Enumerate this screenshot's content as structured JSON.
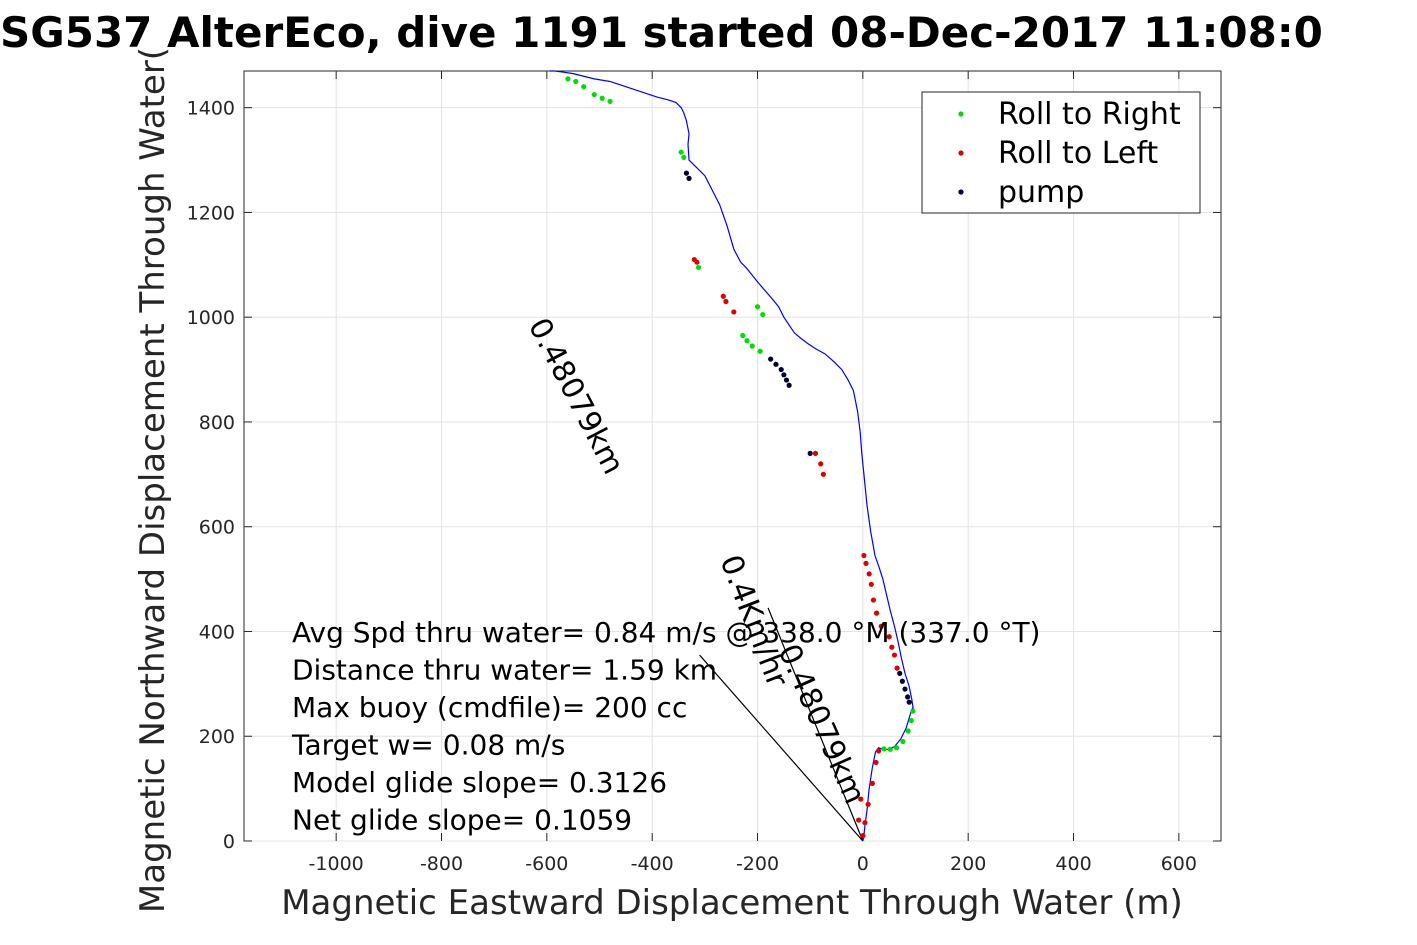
{
  "chart_data": {
    "type": "line",
    "title": "SG537 AlterEco, dive 1191 started 08-Dec-2017 11:08:0",
    "xlabel": "Magnetic Eastward Displacement Through Water (m)",
    "ylabel": "Magnetic Northward Displacement Through Water(",
    "xlim": [
      -1175,
      680
    ],
    "ylim": [
      0,
      1470
    ],
    "xticks": [
      "-1000",
      "-800",
      "-600",
      "-400",
      "-200",
      "0",
      "200",
      "400",
      "600"
    ],
    "yticks": [
      "0",
      "200",
      "400",
      "600",
      "800",
      "1000",
      "1200",
      "1400"
    ],
    "grid": true,
    "legend_position": "top-right",
    "track": {
      "x": [
        0,
        2,
        4,
        8,
        12,
        18,
        24,
        30,
        38,
        48,
        60,
        72,
        82,
        88,
        92,
        95,
        96,
        93,
        88,
        80,
        73,
        67,
        60,
        52,
        45,
        38,
        30,
        23,
        15,
        8,
        2,
        -2,
        -5,
        -10,
        -18,
        -28,
        -40,
        -55,
        -72,
        -90,
        -105,
        -118,
        -130,
        -140,
        -150,
        -160,
        -172,
        -185,
        -198,
        -210,
        -222,
        -232,
        -245,
        -258,
        -272,
        -300,
        -330,
        -332,
        -330,
        -335,
        -340,
        -345,
        -355,
        -370,
        -390,
        -420,
        -450,
        -480,
        -510,
        -530,
        -550,
        -570,
        -585,
        -595
      ],
      "y": [
        0,
        10,
        30,
        60,
        100,
        140,
        170,
        178,
        175,
        175,
        180,
        195,
        215,
        235,
        248,
        255,
        250,
        270,
        295,
        320,
        350,
        380,
        410,
        440,
        470,
        500,
        525,
        545,
        590,
        640,
        700,
        740,
        780,
        820,
        860,
        880,
        900,
        915,
        930,
        940,
        950,
        960,
        970,
        985,
        1000,
        1020,
        1035,
        1050,
        1065,
        1080,
        1095,
        1105,
        1130,
        1175,
        1215,
        1270,
        1300,
        1330,
        1350,
        1375,
        1390,
        1400,
        1410,
        1415,
        1420,
        1430,
        1440,
        1450,
        1455,
        1460,
        1465,
        1468,
        1470,
        1470
      ]
    },
    "series": [
      {
        "name": "Roll to Right",
        "color": "#00dd00",
        "x": [
          40,
          52,
          64,
          76,
          86,
          92,
          95,
          -228,
          -220,
          -210,
          -195,
          -560,
          -545,
          -530,
          -510,
          -495,
          -480,
          -345,
          -340,
          -312,
          -200,
          -190
        ],
        "y": [
          176,
          175,
          178,
          190,
          210,
          230,
          248,
          965,
          955,
          945,
          935,
          1455,
          1450,
          1440,
          1425,
          1418,
          1412,
          1315,
          1305,
          1095,
          1020,
          1005
        ]
      },
      {
        "name": "Roll to Left",
        "color": "#dd0000",
        "x": [
          0,
          4,
          10,
          18,
          25,
          30,
          -8,
          -4,
          2,
          6,
          12,
          16,
          20,
          26,
          35,
          50,
          55,
          60,
          65,
          -90,
          -80,
          -75,
          -320,
          -315,
          -265,
          -260,
          -245
        ],
        "y": [
          10,
          35,
          70,
          110,
          150,
          172,
          40,
          80,
          545,
          530,
          510,
          490,
          460,
          435,
          410,
          390,
          370,
          355,
          330,
          740,
          720,
          700,
          1110,
          1105,
          1040,
          1030,
          1010
        ]
      },
      {
        "name": "pump",
        "color": "#000033",
        "x": [
          -335,
          -330,
          -175,
          -165,
          -155,
          -150,
          -145,
          -140,
          70,
          75,
          80,
          85,
          88,
          -100
        ],
        "y": [
          1275,
          1265,
          920,
          910,
          900,
          890,
          880,
          870,
          320,
          305,
          290,
          275,
          265,
          740
        ]
      }
    ],
    "annotations": [
      "Avg Spd thru water=  0.84 m/s @ 338.0 °M (337.0 °T)",
      "Distance thru water=  1.59 km",
      "Max buoy (cmdfile)= 200 cc",
      "Target w= 0.08 m/s",
      "Model glide slope= 0.3126",
      "Net glide slope= 0.1059"
    ],
    "current_label_long": "0.48079km",
    "current_label_short": "0.4Km/hr"
  }
}
